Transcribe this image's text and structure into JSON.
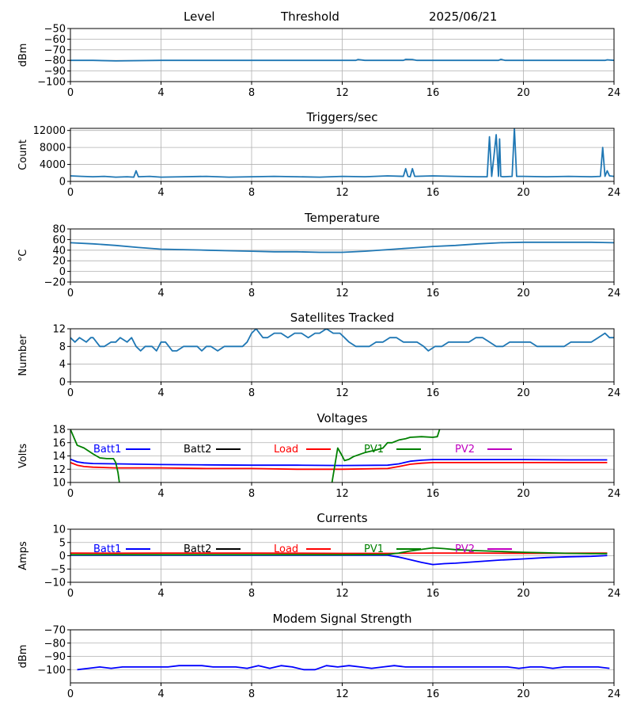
{
  "header": {
    "level_label": "Level",
    "threshold_label": "Threshold",
    "date": "2025/06/21"
  },
  "colors": {
    "default_line": "#1f77b4",
    "batt1": "#0000ff",
    "batt2": "#000000",
    "load": "#ff0000",
    "pv1": "#008000",
    "pv2": "#bf00bf",
    "grid": "#b0b0b0"
  },
  "chart_data": [
    {
      "id": "level",
      "type": "line",
      "title": "",
      "xlabel": "",
      "ylabel": "dBm",
      "xlim": [
        0,
        24
      ],
      "ylim": [
        -100,
        -50
      ],
      "xticks": [
        0,
        4,
        8,
        12,
        16,
        20,
        24
      ],
      "yticks": [
        -100,
        -90,
        -80,
        -70,
        -60,
        -50
      ],
      "grid": true,
      "series": [
        {
          "color_key": "default_line",
          "x": [
            0,
            1,
            2,
            4,
            6,
            8,
            10,
            12,
            12.6,
            12.7,
            13,
            14,
            14.7,
            14.8,
            15.1,
            15.3,
            16,
            18,
            18.9,
            19.0,
            19.2,
            20,
            22,
            23.6,
            23.7,
            24
          ],
          "y": [
            -80,
            -80,
            -80.5,
            -80,
            -80,
            -80,
            -80,
            -80,
            -80,
            -79.2,
            -80,
            -80,
            -80,
            -79,
            -79.2,
            -80,
            -80,
            -80,
            -80,
            -79,
            -80,
            -80,
            -80,
            -80,
            -79.5,
            -80
          ]
        }
      ]
    },
    {
      "id": "triggers",
      "type": "line",
      "title": "Triggers/sec",
      "xlabel": "",
      "ylabel": "Count",
      "xlim": [
        0,
        24
      ],
      "ylim": [
        0,
        12500
      ],
      "xticks": [
        0,
        4,
        8,
        12,
        16,
        20,
        24
      ],
      "yticks": [
        0,
        4000,
        8000,
        12000
      ],
      "grid": true,
      "series": [
        {
          "color_key": "default_line",
          "x": [
            0,
            0.5,
            1,
            1.5,
            2,
            2.5,
            2.8,
            2.9,
            3.0,
            3.5,
            4,
            5,
            6,
            7,
            8,
            9,
            10,
            11,
            12,
            13,
            14,
            14.7,
            14.8,
            14.9,
            15.0,
            15.1,
            15.2,
            16,
            17,
            18,
            18.4,
            18.5,
            18.6,
            18.7,
            18.8,
            18.9,
            18.95,
            19.0,
            19.1,
            19.5,
            19.6,
            19.7,
            20,
            21,
            22,
            23,
            23.4,
            23.5,
            23.6,
            23.7,
            23.8,
            24
          ],
          "y": [
            1300,
            1200,
            1100,
            1200,
            1000,
            1100,
            1000,
            2500,
            1100,
            1200,
            1000,
            1100,
            1200,
            1000,
            1100,
            1200,
            1100,
            1000,
            1200,
            1100,
            1300,
            1200,
            3000,
            1200,
            1100,
            3000,
            1200,
            1300,
            1200,
            1100,
            1100,
            10500,
            1200,
            6000,
            11000,
            1200,
            10000,
            1200,
            1100,
            1200,
            12500,
            1200,
            1200,
            1100,
            1200,
            1100,
            1200,
            8000,
            1200,
            2500,
            1300,
            1200
          ]
        }
      ]
    },
    {
      "id": "temperature",
      "type": "line",
      "title": "Temperature",
      "xlabel": "",
      "ylabel": "°C",
      "xlim": [
        0,
        24
      ],
      "ylim": [
        -20,
        80
      ],
      "xticks": [
        0,
        4,
        8,
        12,
        16,
        20,
        24
      ],
      "yticks": [
        -20,
        0,
        20,
        40,
        60,
        80
      ],
      "grid": true,
      "series": [
        {
          "color_key": "default_line",
          "x": [
            0,
            1,
            2,
            3,
            4,
            5,
            6,
            7,
            8,
            9,
            10,
            11,
            12,
            13,
            14,
            15,
            16,
            17,
            18,
            19,
            20,
            21,
            22,
            23,
            24
          ],
          "y": [
            54,
            52,
            49,
            45,
            42,
            41,
            40,
            39,
            38,
            37,
            37,
            36,
            36,
            38,
            41,
            44,
            47,
            49,
            52,
            54,
            55,
            55,
            55,
            55,
            54
          ]
        }
      ]
    },
    {
      "id": "satellites",
      "type": "line",
      "title": "Satellites Tracked",
      "xlabel": "",
      "ylabel": "Number",
      "xlim": [
        0,
        24
      ],
      "ylim": [
        0,
        12
      ],
      "xticks": [
        0,
        4,
        8,
        12,
        16,
        20,
        24
      ],
      "yticks": [
        0,
        4,
        8,
        12
      ],
      "grid": true,
      "series": [
        {
          "color_key": "default_line",
          "x": [
            0,
            0.2,
            0.4,
            0.7,
            0.9,
            1.0,
            1.3,
            1.5,
            1.8,
            2.0,
            2.2,
            2.5,
            2.7,
            2.9,
            3.1,
            3.3,
            3.6,
            3.8,
            4.0,
            4.2,
            4.5,
            4.7,
            5.0,
            5.3,
            5.6,
            5.8,
            6.0,
            6.2,
            6.5,
            6.8,
            7.0,
            7.3,
            7.6,
            7.8,
            8.0,
            8.2,
            8.5,
            8.7,
            9.0,
            9.3,
            9.6,
            9.9,
            10.2,
            10.5,
            10.8,
            11.0,
            11.3,
            11.6,
            11.9,
            12.1,
            12.3,
            12.6,
            12.9,
            13.2,
            13.5,
            13.8,
            14.1,
            14.4,
            14.7,
            15.0,
            15.3,
            15.6,
            15.8,
            16.1,
            16.4,
            16.7,
            17.0,
            17.3,
            17.6,
            17.9,
            18.2,
            18.5,
            18.8,
            19.1,
            19.4,
            19.7,
            20.0,
            20.3,
            20.6,
            20.9,
            21.2,
            21.5,
            21.8,
            22.1,
            22.4,
            22.7,
            23.0,
            23.3,
            23.6,
            23.8,
            24
          ],
          "y": [
            10,
            9,
            10,
            9,
            10,
            10,
            8,
            8,
            9,
            9,
            10,
            9,
            10,
            8,
            7,
            8,
            8,
            7,
            9,
            9,
            7,
            7,
            8,
            8,
            8,
            7,
            8,
            8,
            7,
            8,
            8,
            8,
            8,
            9,
            11,
            12,
            10,
            10,
            11,
            11,
            10,
            11,
            11,
            10,
            11,
            11,
            12,
            11,
            11,
            10,
            9,
            8,
            8,
            8,
            9,
            9,
            10,
            10,
            9,
            9,
            9,
            8,
            7,
            8,
            8,
            9,
            9,
            9,
            9,
            10,
            10,
            9,
            8,
            8,
            9,
            9,
            9,
            9,
            8,
            8,
            8,
            8,
            8,
            9,
            9,
            9,
            9,
            10,
            11,
            10,
            10
          ]
        }
      ]
    },
    {
      "id": "voltages",
      "type": "line",
      "title": "Voltages",
      "xlabel": "",
      "ylabel": "Volts",
      "xlim": [
        0,
        24
      ],
      "ylim": [
        10,
        18
      ],
      "xticks": [
        0,
        4,
        8,
        12,
        16,
        20,
        24
      ],
      "yticks": [
        10,
        12,
        14,
        16,
        18
      ],
      "grid": true,
      "legend": "top",
      "series": [
        {
          "name": "Batt1",
          "color_key": "batt1",
          "x": [
            0,
            0.3,
            0.6,
            1,
            2,
            4,
            6,
            8,
            10,
            12,
            14,
            14.5,
            15,
            15.5,
            16,
            18,
            20,
            22,
            23.7
          ],
          "y": [
            13.5,
            13.1,
            12.95,
            12.85,
            12.8,
            12.7,
            12.65,
            12.6,
            12.6,
            12.55,
            12.6,
            12.8,
            13.2,
            13.35,
            13.45,
            13.45,
            13.45,
            13.4,
            13.4
          ]
        },
        {
          "name": "Batt2",
          "color_key": "batt2",
          "x": [],
          "y": []
        },
        {
          "name": "Load",
          "color_key": "load",
          "x": [
            0,
            0.3,
            0.6,
            1,
            2,
            4,
            6,
            8,
            10,
            12,
            14,
            14.5,
            15,
            15.5,
            16,
            18,
            20,
            22,
            23.7
          ],
          "y": [
            13.0,
            12.6,
            12.4,
            12.3,
            12.2,
            12.2,
            12.1,
            12.1,
            12.0,
            12.0,
            12.1,
            12.4,
            12.75,
            12.9,
            13.0,
            13.0,
            13.0,
            13.0,
            13.0
          ]
        },
        {
          "name": "PV1",
          "color_key": "pv1",
          "x": [
            0,
            0.3,
            0.6,
            1.0,
            1.3,
            1.6,
            1.9,
            2.0,
            2.1,
            2.15,
            2.2,
            11.5,
            11.8,
            12.0,
            12.1,
            12.3,
            12.5,
            13.0,
            13.5,
            13.8,
            14.0,
            14.2,
            14.5,
            14.8,
            15.0,
            15.5,
            16.0,
            16.2,
            16.3
          ],
          "y": [
            18.0,
            15.6,
            15.2,
            14.3,
            13.7,
            13.6,
            13.6,
            13.0,
            11.5,
            10.3,
            9.0,
            9.0,
            15.2,
            14.0,
            13.3,
            13.5,
            13.9,
            14.5,
            14.9,
            15.2,
            16.0,
            16.0,
            16.4,
            16.6,
            16.8,
            16.9,
            16.8,
            16.9,
            18.0
          ]
        },
        {
          "name": "PV2",
          "color_key": "pv2",
          "x": [],
          "y": []
        }
      ]
    },
    {
      "id": "currents",
      "type": "line",
      "title": "Currents",
      "xlabel": "",
      "ylabel": "Amps",
      "xlim": [
        0,
        24
      ],
      "ylim": [
        -10,
        10
      ],
      "xticks": [
        0,
        4,
        8,
        12,
        16,
        20,
        24
      ],
      "yticks": [
        -10,
        -5,
        0,
        5,
        10
      ],
      "grid": true,
      "legend": "top",
      "series": [
        {
          "name": "Batt1",
          "color_key": "batt1",
          "x": [
            0,
            2,
            4,
            6,
            8,
            10,
            12,
            14,
            14.5,
            15,
            15.5,
            16,
            16.5,
            17,
            18,
            19,
            20,
            21,
            22,
            23,
            23.7
          ],
          "y": [
            0.2,
            0.2,
            0.2,
            0.2,
            0.2,
            0.2,
            0.2,
            0.2,
            -0.5,
            -1.5,
            -2.5,
            -3.3,
            -3.0,
            -2.8,
            -2.2,
            -1.6,
            -1.2,
            -0.7,
            -0.4,
            -0.2,
            0.1
          ]
        },
        {
          "name": "Batt2",
          "color_key": "batt2",
          "x": [],
          "y": []
        },
        {
          "name": "Load",
          "color_key": "load",
          "x": [
            0,
            2,
            4,
            6,
            8,
            10,
            12,
            14,
            16,
            18,
            20,
            22,
            23.7
          ],
          "y": [
            1.0,
            0.95,
            1.0,
            1.0,
            1.0,
            0.95,
            0.9,
            0.9,
            1.0,
            1.0,
            0.9,
            0.95,
            1.0
          ]
        },
        {
          "name": "PV1",
          "color_key": "pv1",
          "x": [
            0,
            2,
            4,
            6,
            8,
            10,
            12,
            14,
            14.5,
            15,
            15.5,
            16,
            16.5,
            17,
            18,
            19,
            20,
            21,
            22,
            23,
            23.7
          ],
          "y": [
            0.4,
            0.4,
            0.4,
            0.4,
            0.4,
            0.4,
            0.4,
            0.5,
            1.0,
            1.8,
            2.4,
            3.0,
            2.7,
            2.3,
            1.9,
            1.6,
            1.3,
            1.1,
            0.9,
            0.8,
            0.8
          ]
        },
        {
          "name": "PV2",
          "color_key": "pv2",
          "x": [],
          "y": []
        }
      ]
    },
    {
      "id": "modem",
      "type": "line",
      "title": "Modem Signal Strength",
      "xlabel": "",
      "ylabel": "dBm",
      "xlim": [
        0,
        24
      ],
      "ylim": [
        -110,
        -70
      ],
      "xticks": [
        0,
        4,
        8,
        12,
        16,
        20,
        24
      ],
      "yticks": [
        -100,
        -90,
        -80,
        -70
      ],
      "grid": true,
      "series": [
        {
          "color_key": "batt1",
          "x": [
            0.3,
            0.8,
            1.3,
            1.8,
            2.3,
            3.3,
            4.3,
            4.8,
            5.8,
            6.3,
            7.3,
            7.8,
            8.3,
            8.8,
            9.3,
            9.8,
            10.3,
            10.8,
            11.3,
            11.8,
            12.3,
            12.8,
            13.3,
            13.8,
            14.3,
            14.8,
            15.3,
            15.8,
            16.3,
            16.8,
            17.3,
            17.8,
            18.3,
            18.8,
            19.3,
            19.8,
            20.3,
            20.8,
            21.3,
            21.8,
            22.3,
            22.8,
            23.3,
            23.8
          ],
          "y": [
            -100,
            -99,
            -98,
            -99,
            -98,
            -98,
            -98,
            -97,
            -97,
            -98,
            -98,
            -99,
            -97,
            -99,
            -97,
            -98,
            -100,
            -100,
            -97,
            -98,
            -97,
            -98,
            -99,
            -98,
            -97,
            -98,
            -98,
            -98,
            -98,
            -98,
            -98,
            -98,
            -98,
            -98,
            -98,
            -99,
            -98,
            -98,
            -99,
            -98,
            -98,
            -98,
            -98,
            -99
          ]
        }
      ]
    }
  ]
}
